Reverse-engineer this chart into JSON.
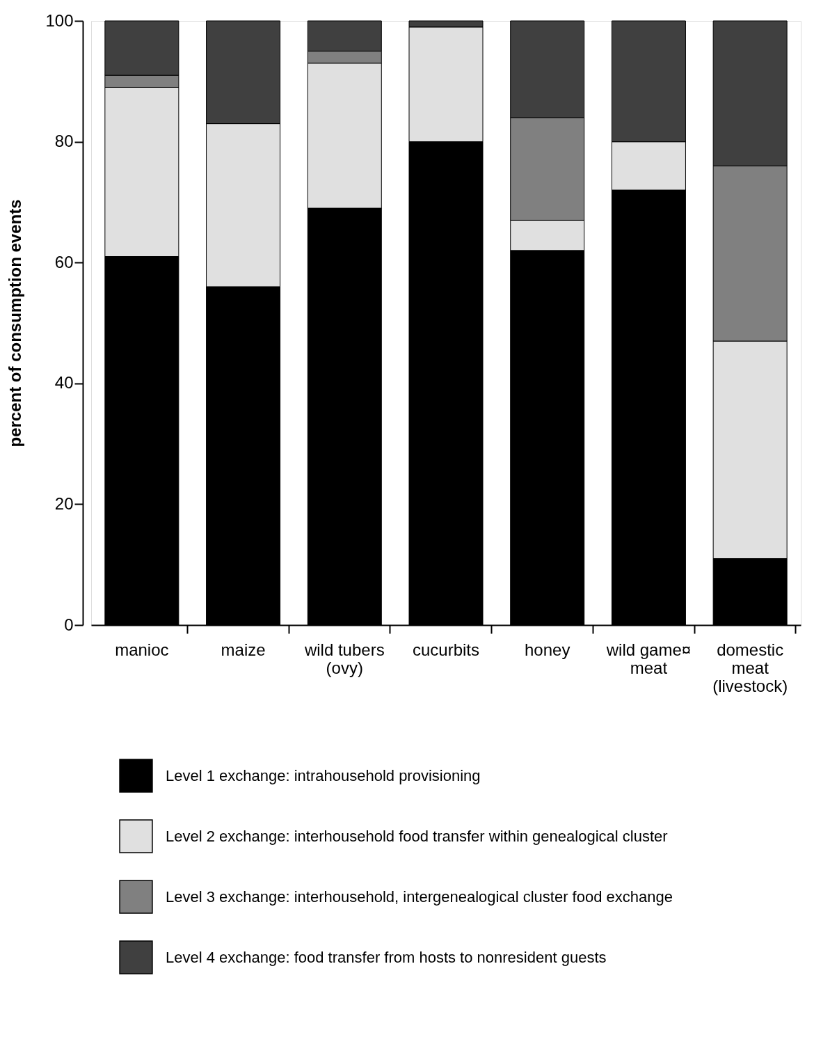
{
  "chart_data": {
    "type": "bar",
    "stacked": true,
    "ylabel": "percent of consumption events",
    "categories": [
      "manioc",
      "maize",
      "wild tubers\n(ovy)",
      "cucurbits",
      "honey",
      "wild game¤\nmeat",
      "domestic\nmeat\n(livestock)"
    ],
    "series": [
      {
        "name": "Level 1 exchange:  intrahousehold provisioning",
        "color": "#000000",
        "values": [
          61,
          56,
          69,
          80,
          62,
          72,
          11
        ]
      },
      {
        "name": "Level 2 exchange:  interhousehold food transfer within genealogical cluster",
        "color": "#e0e0e0",
        "values": [
          28,
          27,
          24,
          19,
          5,
          8,
          36
        ]
      },
      {
        "name": "Level 3 exchange:  interhousehold, intergenealogical cluster food exchange",
        "color": "#808080",
        "values": [
          2,
          0,
          2,
          0,
          17,
          0,
          29
        ]
      },
      {
        "name": "Level 4 exchange:  food transfer from hosts to nonresident guests",
        "color": "#404040",
        "values": [
          9,
          17,
          5,
          1,
          16,
          20,
          24
        ]
      }
    ],
    "ylim": [
      0,
      100
    ],
    "yticks": [
      0,
      20,
      40,
      60,
      80,
      100
    ],
    "grid": false,
    "legend": "bottom"
  }
}
